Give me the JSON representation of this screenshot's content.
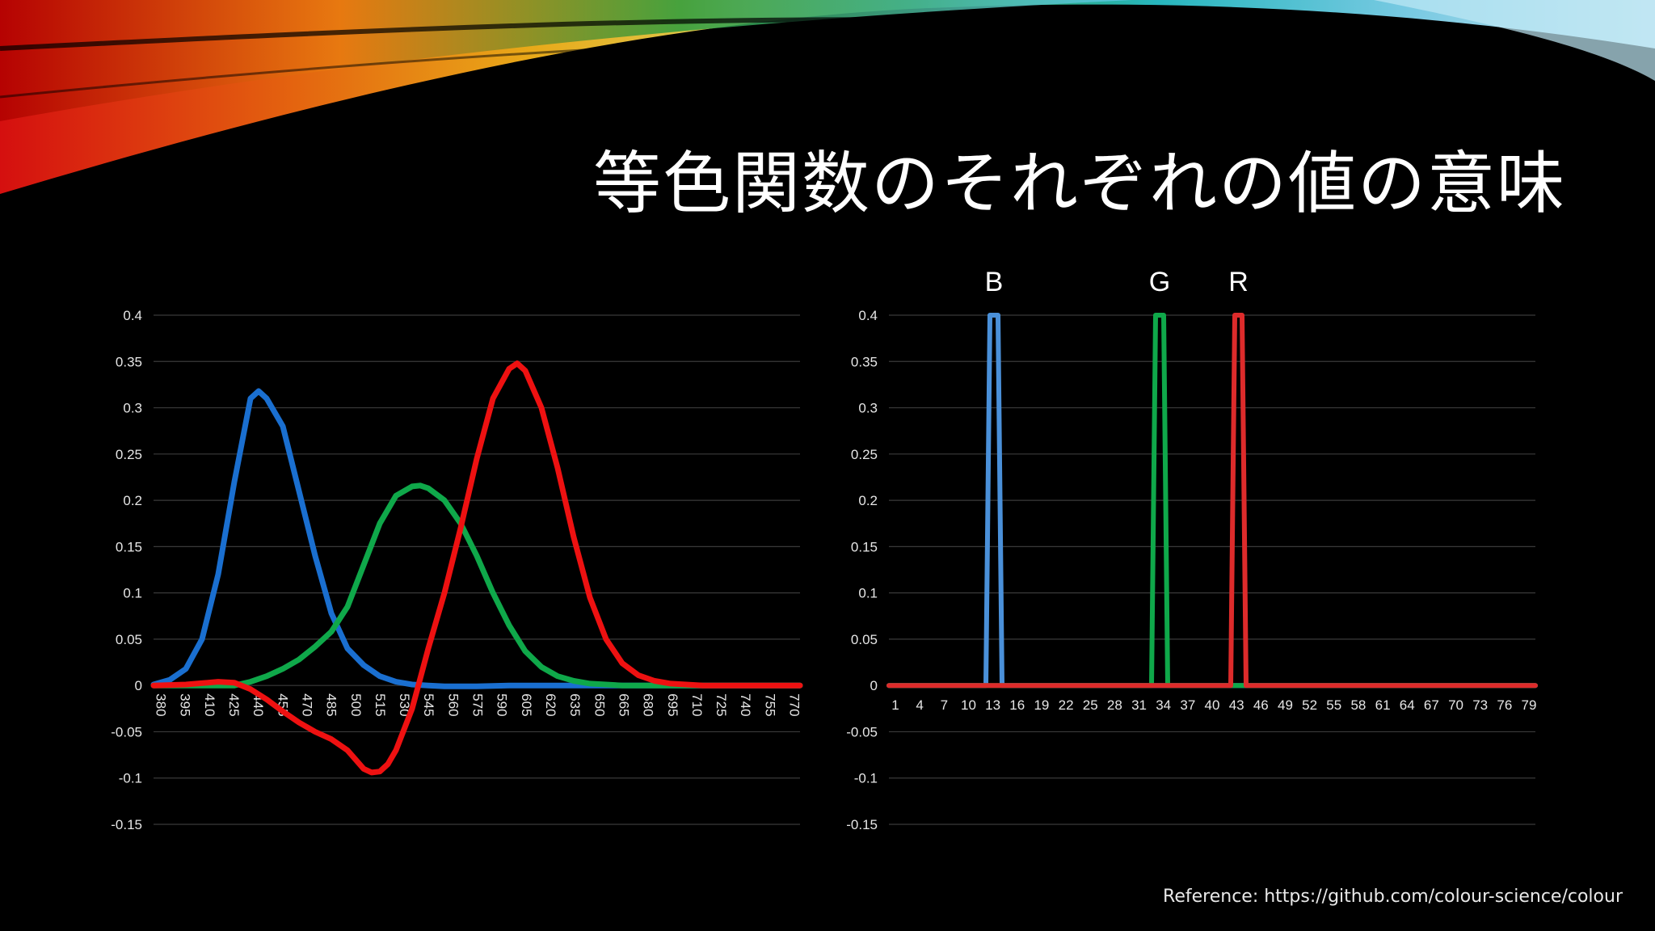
{
  "slide": {
    "title": "等色関数のそれぞれの値の意味",
    "reference": "Reference: https://github.com/colour-science/colour"
  },
  "chart_data": [
    {
      "type": "line",
      "title": "",
      "xlabel": "",
      "ylabel": "",
      "ylim": [
        -0.15,
        0.4
      ],
      "yticks": [
        0.4,
        0.35,
        0.3,
        0.25,
        0.2,
        0.15,
        0.1,
        0.05,
        0,
        -0.05,
        -0.1,
        -0.15
      ],
      "ytick_labels": [
        "0.4",
        "0.35",
        "0.3",
        "0.25",
        "0.2",
        "0.15",
        "0.1",
        "0.05",
        "0",
        "-0.05",
        "-0.1",
        "-0.15"
      ],
      "xlim": [
        380,
        780
      ],
      "x_tick_labels": [
        "380",
        "395",
        "410",
        "425",
        "440",
        "455",
        "470",
        "485",
        "500",
        "515",
        "530",
        "545",
        "560",
        "575",
        "590",
        "605",
        "620",
        "635",
        "650",
        "665",
        "680",
        "695",
        "710",
        "725",
        "740",
        "755",
        "770"
      ],
      "grid": true,
      "series": [
        {
          "color": "#1a6fd0",
          "x": [
            380,
            390,
            400,
            410,
            420,
            430,
            440,
            445,
            450,
            460,
            470,
            480,
            490,
            500,
            510,
            520,
            530,
            540,
            550,
            560,
            580,
            600,
            650,
            700,
            780
          ],
          "values": [
            0.001,
            0.006,
            0.018,
            0.05,
            0.12,
            0.22,
            0.31,
            0.318,
            0.31,
            0.28,
            0.21,
            0.14,
            0.078,
            0.04,
            0.022,
            0.01,
            0.004,
            0.001,
            0.0,
            -0.001,
            -0.001,
            0.0,
            0.0,
            0.0,
            0.0
          ]
        },
        {
          "color": "#0fa84a",
          "x": [
            380,
            400,
            420,
            430,
            440,
            450,
            460,
            470,
            480,
            490,
            500,
            510,
            520,
            530,
            540,
            545,
            550,
            560,
            570,
            580,
            590,
            600,
            610,
            620,
            630,
            640,
            650,
            670,
            700,
            780
          ],
          "values": [
            0.0,
            0.0,
            0.0,
            0.0,
            0.004,
            0.01,
            0.018,
            0.028,
            0.042,
            0.058,
            0.085,
            0.13,
            0.175,
            0.205,
            0.215,
            0.216,
            0.213,
            0.2,
            0.175,
            0.14,
            0.1,
            0.065,
            0.037,
            0.02,
            0.01,
            0.005,
            0.002,
            0.0,
            0.0,
            0.0
          ]
        },
        {
          "color": "#ee1111",
          "x": [
            380,
            400,
            420,
            430,
            440,
            450,
            460,
            470,
            480,
            490,
            500,
            505,
            510,
            515,
            520,
            525,
            530,
            540,
            550,
            560,
            570,
            580,
            590,
            600,
            605,
            610,
            620,
            630,
            640,
            650,
            660,
            670,
            680,
            690,
            700,
            720,
            750,
            780
          ],
          "values": [
            0.0,
            0.001,
            0.004,
            0.003,
            -0.004,
            -0.015,
            -0.028,
            -0.04,
            -0.05,
            -0.058,
            -0.07,
            -0.08,
            -0.09,
            -0.094,
            -0.093,
            -0.085,
            -0.07,
            -0.025,
            0.04,
            0.1,
            0.17,
            0.245,
            0.31,
            0.342,
            0.348,
            0.34,
            0.3,
            0.235,
            0.16,
            0.095,
            0.05,
            0.024,
            0.011,
            0.005,
            0.002,
            0.0,
            0.0,
            0.0
          ]
        }
      ]
    },
    {
      "type": "line",
      "title": "",
      "xlabel": "",
      "ylabel": "",
      "ylim": [
        -0.15,
        0.4
      ],
      "yticks": [
        0.4,
        0.35,
        0.3,
        0.25,
        0.2,
        0.15,
        0.1,
        0.05,
        0,
        -0.05,
        -0.1,
        -0.15
      ],
      "ytick_labels": [
        "0.4",
        "0.35",
        "0.3",
        "0.25",
        "0.2",
        "0.15",
        "0.1",
        "0.05",
        "0",
        "-0.05",
        "-0.1",
        "-0.15"
      ],
      "xlim": [
        1,
        81
      ],
      "x_tick_labels": [
        "1",
        "4",
        "7",
        "10",
        "13",
        "16",
        "19",
        "22",
        "25",
        "28",
        "31",
        "34",
        "37",
        "40",
        "43",
        "46",
        "49",
        "52",
        "55",
        "58",
        "61",
        "64",
        "67",
        "70",
        "73",
        "76",
        "79"
      ],
      "grid": true,
      "peak_labels": [
        "B",
        "G",
        "R"
      ],
      "series": [
        {
          "color": "#4a90d9",
          "x": [
            1,
            13,
            13.5,
            14.5,
            15,
            81
          ],
          "values": [
            0,
            0,
            0.4,
            0.4,
            0,
            0
          ]
        },
        {
          "color": "#0fa84a",
          "x": [
            1,
            33.5,
            34,
            35,
            35.5,
            81
          ],
          "values": [
            0,
            0,
            0.4,
            0.4,
            0,
            0
          ]
        },
        {
          "color": "#dd2b2b",
          "x": [
            1,
            43.3,
            43.8,
            44.7,
            45.2,
            81
          ],
          "values": [
            0,
            0,
            0.4,
            0.4,
            0,
            0
          ]
        }
      ]
    }
  ]
}
